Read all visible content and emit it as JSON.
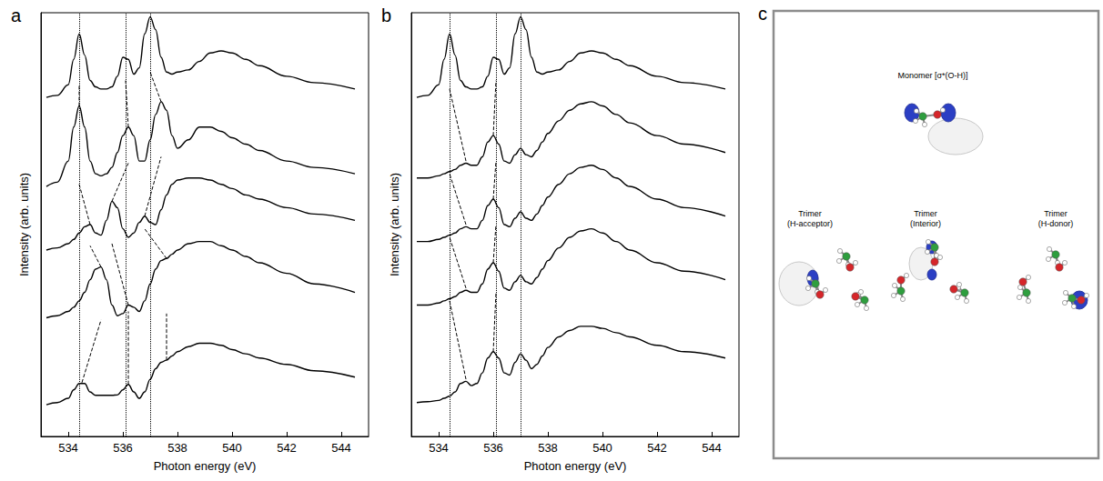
{
  "chart_data": [
    {
      "type": "line",
      "title": "a",
      "x_label": "Photon energy (eV)",
      "y_label": "Intensity (arb. units)",
      "xlim": [
        533,
        545
      ],
      "xticks": [
        534,
        536,
        538,
        540,
        542,
        544
      ],
      "ylim": [
        0,
        10
      ],
      "tick_labels": "x",
      "grid": false,
      "x": [
        533.2,
        533.6,
        534.0,
        534.2,
        534.4,
        534.6,
        534.8,
        535.0,
        535.2,
        535.4,
        535.6,
        535.8,
        536.0,
        536.2,
        536.4,
        536.6,
        536.8,
        537.0,
        537.2,
        537.4,
        537.6,
        537.8,
        538.0,
        538.4,
        538.8,
        539.2,
        539.6,
        540.0,
        540.5,
        541,
        542,
        543,
        544.5
      ],
      "series": [
        {
          "color": "#000000",
          "values": [
            8.0,
            8.05,
            8.3,
            8.9,
            9.5,
            9.0,
            8.4,
            8.25,
            8.2,
            8.2,
            8.25,
            8.5,
            8.95,
            8.9,
            8.55,
            8.7,
            9.5,
            9.9,
            9.6,
            8.95,
            8.6,
            8.55,
            8.6,
            8.65,
            8.85,
            9.05,
            9.1,
            9.05,
            8.9,
            8.75,
            8.5,
            8.35,
            8.2
          ]
        },
        {
          "color": "#000000",
          "values": [
            5.9,
            6.0,
            6.5,
            7.3,
            7.8,
            7.3,
            6.5,
            6.2,
            6.15,
            6.2,
            6.35,
            6.7,
            7.1,
            7.3,
            7.1,
            6.5,
            6.5,
            7.0,
            7.6,
            7.9,
            7.7,
            7.1,
            6.8,
            7.0,
            7.3,
            7.3,
            7.2,
            7.05,
            6.9,
            6.75,
            6.5,
            6.35,
            6.2
          ]
        },
        {
          "color": "#000000",
          "values": [
            4.4,
            4.45,
            4.55,
            4.65,
            4.8,
            4.95,
            5.0,
            4.8,
            4.75,
            5.1,
            5.55,
            5.4,
            4.9,
            4.7,
            4.8,
            5.05,
            5.2,
            5.05,
            5.0,
            5.35,
            5.7,
            5.95,
            6.05,
            6.1,
            6.1,
            6.05,
            5.95,
            5.85,
            5.7,
            5.6,
            5.4,
            5.25,
            5.1
          ]
        },
        {
          "color": "#000000",
          "values": [
            2.8,
            2.85,
            2.95,
            3.05,
            3.2,
            3.4,
            3.7,
            3.95,
            4.0,
            3.7,
            3.1,
            2.85,
            2.9,
            3.1,
            3.05,
            2.95,
            3.2,
            3.6,
            3.95,
            4.15,
            4.2,
            4.3,
            4.4,
            4.55,
            4.6,
            4.6,
            4.5,
            4.4,
            4.25,
            4.1,
            3.85,
            3.6,
            3.4
          ]
        },
        {
          "color": "#000000",
          "values": [
            0.75,
            0.8,
            0.9,
            1.1,
            1.25,
            1.25,
            1.05,
            0.97,
            0.97,
            0.97,
            0.97,
            0.98,
            1.1,
            1.23,
            1.05,
            0.9,
            1.05,
            1.35,
            1.6,
            1.75,
            1.8,
            1.9,
            2.0,
            2.12,
            2.2,
            2.2,
            2.15,
            2.05,
            1.95,
            1.85,
            1.7,
            1.55,
            1.4
          ]
        }
      ],
      "vlines": [
        534.4,
        536.1,
        537.0
      ],
      "connectors": [
        [
          [
            534.4,
            7.8
          ],
          [
            534.4,
            8.3
          ]
        ],
        [
          [
            534.8,
            5.0
          ],
          [
            534.4,
            5.95
          ]
        ],
        [
          [
            535.2,
            4.0
          ],
          [
            534.8,
            4.5
          ]
        ],
        [
          [
            534.5,
            1.27
          ],
          [
            535.2,
            2.75
          ]
        ],
        [
          [
            536.2,
            7.3
          ],
          [
            536.1,
            8.4
          ]
        ],
        [
          [
            535.6,
            5.55
          ],
          [
            536.2,
            6.45
          ]
        ],
        [
          [
            536.2,
            3.1
          ],
          [
            535.6,
            4.55
          ]
        ],
        [
          [
            536.2,
            1.23
          ],
          [
            536.2,
            2.95
          ]
        ],
        [
          [
            537.4,
            7.9
          ],
          [
            537.0,
            8.6
          ]
        ],
        [
          [
            536.8,
            5.2
          ],
          [
            537.4,
            6.6
          ]
        ],
        [
          [
            537.6,
            4.2
          ],
          [
            536.8,
            4.9
          ]
        ],
        [
          [
            537.6,
            1.8
          ],
          [
            537.6,
            2.9
          ]
        ]
      ]
    },
    {
      "type": "line",
      "title": "b",
      "x_label": "Photon energy (eV)",
      "y_label": "Intensity (arb. units)",
      "xlim": [
        533,
        545
      ],
      "xticks": [
        534,
        536,
        538,
        540,
        542,
        544
      ],
      "ylim": [
        0,
        10
      ],
      "tick_labels": "x",
      "grid": false,
      "x": [
        533.2,
        533.6,
        534.0,
        534.2,
        534.4,
        534.6,
        534.8,
        535.0,
        535.2,
        535.4,
        535.6,
        535.8,
        536.0,
        536.2,
        536.4,
        536.6,
        536.8,
        537.0,
        537.2,
        537.4,
        537.6,
        537.8,
        538.0,
        538.4,
        538.8,
        539.2,
        539.6,
        540.0,
        540.5,
        541,
        542,
        543,
        544.5
      ],
      "series": [
        {
          "color": "#000000",
          "values": [
            8.0,
            8.05,
            8.3,
            8.9,
            9.5,
            9.0,
            8.4,
            8.25,
            8.2,
            8.2,
            8.25,
            8.5,
            8.95,
            8.9,
            8.55,
            8.7,
            9.5,
            9.9,
            9.6,
            8.95,
            8.6,
            8.55,
            8.6,
            8.65,
            8.85,
            9.05,
            9.1,
            9.05,
            8.9,
            8.75,
            8.5,
            8.35,
            8.2
          ]
        },
        {
          "color": "#000000",
          "values": [
            6.1,
            6.1,
            6.15,
            6.2,
            6.25,
            6.3,
            6.4,
            6.45,
            6.4,
            6.4,
            6.6,
            6.95,
            7.1,
            6.9,
            6.5,
            6.45,
            6.65,
            6.8,
            6.65,
            6.6,
            6.75,
            6.95,
            7.15,
            7.45,
            7.7,
            7.85,
            7.9,
            7.8,
            7.6,
            7.4,
            7.1,
            6.9,
            6.7
          ]
        },
        {
          "color": "#000000",
          "values": [
            4.6,
            4.6,
            4.65,
            4.7,
            4.75,
            4.8,
            4.9,
            4.95,
            4.9,
            4.9,
            5.1,
            5.45,
            5.6,
            5.4,
            5.0,
            4.95,
            5.15,
            5.3,
            5.15,
            5.1,
            5.25,
            5.45,
            5.65,
            5.95,
            6.2,
            6.35,
            6.4,
            6.3,
            6.1,
            5.9,
            5.6,
            5.4,
            5.2
          ]
        },
        {
          "color": "#000000",
          "values": [
            3.1,
            3.1,
            3.15,
            3.2,
            3.25,
            3.3,
            3.4,
            3.45,
            3.4,
            3.4,
            3.6,
            3.95,
            4.1,
            3.9,
            3.5,
            3.45,
            3.65,
            3.8,
            3.65,
            3.6,
            3.75,
            3.95,
            4.15,
            4.45,
            4.7,
            4.85,
            4.9,
            4.8,
            4.6,
            4.4,
            4.1,
            3.9,
            3.7
          ]
        },
        {
          "color": "#000000",
          "values": [
            0.8,
            0.82,
            0.85,
            0.9,
            0.95,
            1.05,
            1.25,
            1.3,
            1.2,
            1.25,
            1.5,
            1.85,
            2.0,
            1.85,
            1.5,
            1.45,
            1.75,
            1.95,
            1.8,
            1.6,
            1.7,
            1.9,
            2.1,
            2.35,
            2.5,
            2.6,
            2.6,
            2.55,
            2.45,
            2.35,
            2.15,
            2.0,
            1.85
          ]
        }
      ],
      "vlines": [
        534.4,
        536.1,
        537.0
      ],
      "connectors": [
        [
          [
            535.0,
            6.5
          ],
          [
            534.4,
            8.2
          ]
        ],
        [
          [
            535.0,
            5.0
          ],
          [
            534.4,
            6.2
          ]
        ],
        [
          [
            535.0,
            3.5
          ],
          [
            534.4,
            4.7
          ]
        ],
        [
          [
            535.0,
            1.35
          ],
          [
            534.4,
            3.2
          ]
        ],
        [
          [
            536.0,
            7.1
          ],
          [
            536.1,
            8.4
          ]
        ],
        [
          [
            536.0,
            5.6
          ],
          [
            536.1,
            6.5
          ]
        ],
        [
          [
            536.0,
            4.1
          ],
          [
            536.1,
            5.0
          ]
        ],
        [
          [
            536.0,
            2.0
          ],
          [
            536.1,
            3.4
          ]
        ]
      ]
    }
  ],
  "diagram": {
    "title": "c",
    "items": [
      {
        "lines": [
          "Monomer [σ*(O-H)]"
        ]
      },
      {
        "lines": [
          "Trimer",
          "(H-acceptor)"
        ]
      },
      {
        "lines": [
          "Trimer",
          "(Interior)"
        ]
      },
      {
        "lines": [
          "Trimer",
          "(H-donor)"
        ]
      }
    ]
  }
}
